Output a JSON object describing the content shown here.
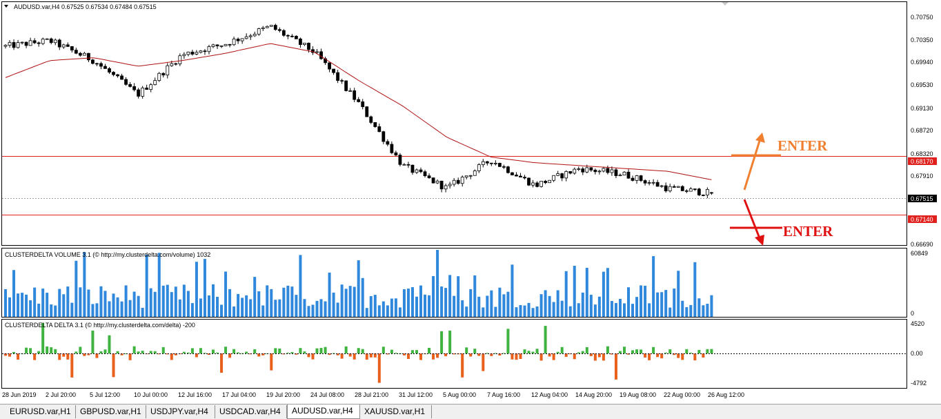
{
  "main_chart": {
    "title": "AUDUSD.var,H4  0.67525 0.67534 0.67484 0.67515",
    "price_axis": [
      "0.70750",
      "0.70350",
      "0.69940",
      "0.69530",
      "0.69130",
      "0.68720",
      "0.68320",
      "0.67910",
      "0.67515",
      "0.66690"
    ],
    "price_range": [
      0.666,
      0.7088
    ],
    "current_price": "0.67515",
    "levels": [
      {
        "label": "0.68170",
        "price": 0.6817,
        "color": "#e0201c"
      },
      {
        "label": "0.67140",
        "price": 0.6714,
        "color": "#e0201c"
      }
    ],
    "ma_color": "#b01010",
    "candle_color": "#000000",
    "annotations": [
      {
        "text": "ENTER",
        "color": "#f08030",
        "direction": "up"
      },
      {
        "text": "ENTER",
        "color": "#e01010",
        "direction": "down"
      }
    ]
  },
  "volume_panel": {
    "title": "CLUSTERDELTA VOLUME 3.1 (© http://my.clusterdelta.com/volume) 1032",
    "axis_top": "60849",
    "axis_bottom": "0",
    "max": 60849,
    "color": "#2f88dc"
  },
  "delta_panel": {
    "title": "CLUSTERDELTA DELTA 3.1 (© http://my.clusterdelta.com/delta) -200",
    "axis": [
      "4520",
      "0.00",
      "-4792"
    ],
    "pos_color": "#3fb33f",
    "neg_color": "#e8601c"
  },
  "time_axis": [
    "28 Jun 2019",
    "2 Jul 20:00",
    "5 Jul 12:00",
    "10 Jul 00:00",
    "12 Jul 16:00",
    "17 Jul 04:00",
    "19 Jul 20:00",
    "24 Jul 08:00",
    "28 Jul 21:00",
    "31 Jul 12:00",
    "5 Aug 00:00",
    "7 Aug 16:00",
    "12 Aug 04:00",
    "14 Aug 20:00",
    "19 Aug 08:00",
    "22 Aug 00:00",
    "26 Aug 12:00"
  ],
  "tabs": [
    {
      "label": "EURUSD.var,H1",
      "active": false
    },
    {
      "label": "GBPUSD.var,H1",
      "active": false
    },
    {
      "label": "USDJPY.var,H4",
      "active": false
    },
    {
      "label": "USDCAD.var,H4",
      "active": false
    },
    {
      "label": "AUDUSD.var,H4",
      "active": true
    },
    {
      "label": "XAUUSD.var,H1",
      "active": false
    }
  ],
  "chart_data": {
    "type": "line",
    "title": "AUDUSD.var,H4",
    "ylim": [
      0.6669,
      0.7085
    ],
    "x": [
      "28 Jun 2019",
      "2 Jul 20:00",
      "5 Jul 12:00",
      "10 Jul 00:00",
      "12 Jul 16:00",
      "17 Jul 04:00",
      "19 Jul 20:00",
      "24 Jul 08:00",
      "28 Jul 21:00",
      "31 Jul 12:00",
      "5 Aug 00:00",
      "7 Aug 16:00",
      "12 Aug 04:00",
      "14 Aug 20:00",
      "19 Aug 08:00",
      "22 Aug 00:00",
      "26 Aug 12:00"
    ],
    "series": [
      {
        "values": [
          0.701,
          0.702,
          0.6985,
          0.6925,
          0.6995,
          0.7015,
          0.7045,
          0.7,
          0.691,
          0.68,
          0.676,
          0.681,
          0.6765,
          0.6795,
          0.6785,
          0.676,
          0.67515
        ]
      },
      {
        "values": [
          0.6955,
          0.6985,
          0.699,
          0.6975,
          0.6985,
          0.6998,
          0.7015,
          0.7,
          0.695,
          0.6905,
          0.685,
          0.6815,
          0.6805,
          0.68,
          0.6795,
          0.679,
          0.6775
        ]
      }
    ],
    "grid": false,
    "legend": "none"
  }
}
